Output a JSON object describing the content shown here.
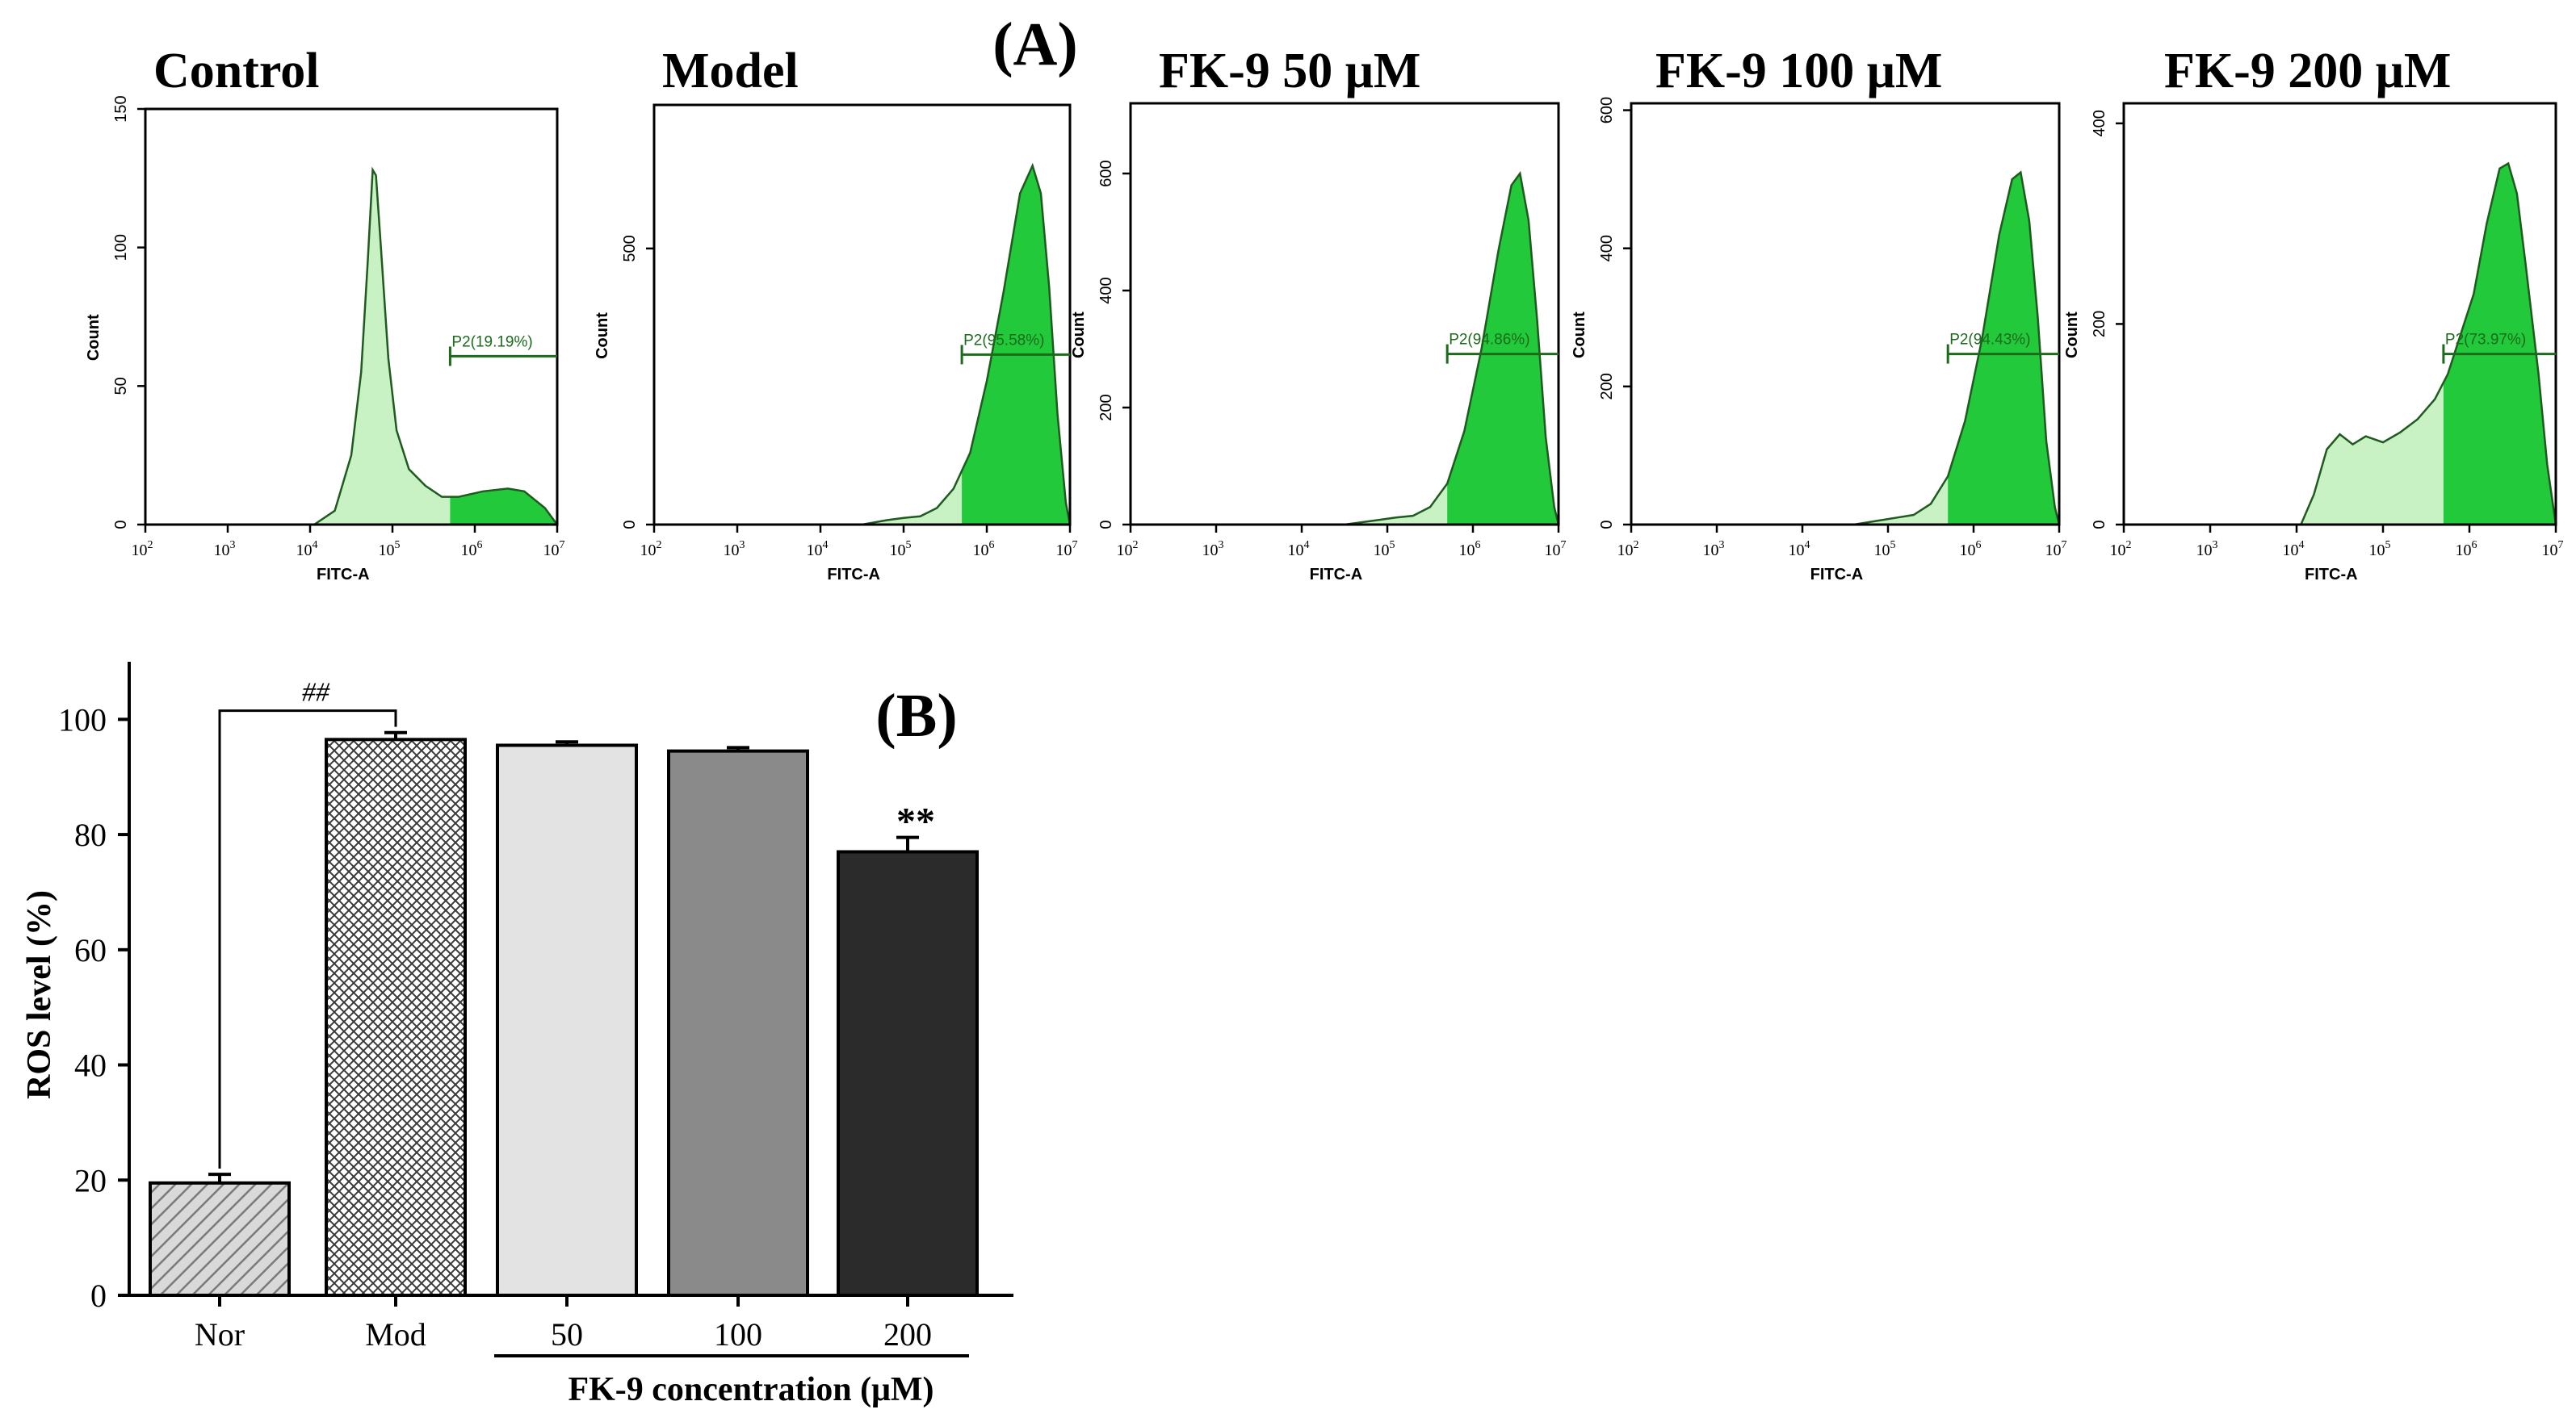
{
  "panel_a_label": "(A)",
  "panel_b_label": "(B)",
  "chart_data": [
    {
      "type": "histogram",
      "title": "Control",
      "xlabel": "FITC-A",
      "ylabel": "Count",
      "x_scale": "log10",
      "xlim": [
        100,
        10000000
      ],
      "x_ticks": [
        {
          "v": 100,
          "e": "2"
        },
        {
          "v": 1000,
          "e": "3"
        },
        {
          "v": 10000,
          "e": "4"
        },
        {
          "v": 100000,
          "e": "5"
        },
        {
          "v": 1000000,
          "e": "6"
        },
        {
          "v": 10000000,
          "e": "7"
        }
      ],
      "ylim": [
        0,
        150
      ],
      "y_ticks": [
        0,
        50,
        100,
        150
      ],
      "gate": {
        "label": "P2(19.19%)",
        "from_log": 5.7,
        "to_log": 7.0
      },
      "profile": [
        [
          4.05,
          0
        ],
        [
          4.3,
          5
        ],
        [
          4.5,
          25
        ],
        [
          4.62,
          55
        ],
        [
          4.7,
          95
        ],
        [
          4.76,
          128
        ],
        [
          4.8,
          126
        ],
        [
          4.86,
          100
        ],
        [
          4.95,
          60
        ],
        [
          5.05,
          34
        ],
        [
          5.2,
          20
        ],
        [
          5.4,
          14
        ],
        [
          5.6,
          10
        ],
        [
          5.8,
          10
        ],
        [
          6.1,
          12
        ],
        [
          6.4,
          13
        ],
        [
          6.6,
          12
        ],
        [
          6.85,
          6
        ],
        [
          7.0,
          0
        ]
      ]
    },
    {
      "type": "histogram",
      "title": "Model",
      "xlabel": "FITC-A",
      "ylabel": "Count",
      "x_scale": "log10",
      "xlim": [
        100,
        10000000
      ],
      "x_ticks": [
        {
          "v": 100,
          "e": "2"
        },
        {
          "v": 1000,
          "e": "3"
        },
        {
          "v": 10000,
          "e": "4"
        },
        {
          "v": 100000,
          "e": "5"
        },
        {
          "v": 1000000,
          "e": "6"
        },
        {
          "v": 10000000,
          "e": "7"
        }
      ],
      "ylim": [
        0,
        760
      ],
      "y_ticks": [
        0,
        500
      ],
      "gate": {
        "label": "P2(95.58%)",
        "from_log": 5.7,
        "to_log": 7.0
      },
      "profile": [
        [
          4.5,
          0
        ],
        [
          4.8,
          8
        ],
        [
          5.0,
          12
        ],
        [
          5.2,
          15
        ],
        [
          5.4,
          30
        ],
        [
          5.6,
          65
        ],
        [
          5.8,
          130
        ],
        [
          6.0,
          260
        ],
        [
          6.2,
          420
        ],
        [
          6.4,
          600
        ],
        [
          6.55,
          650
        ],
        [
          6.65,
          600
        ],
        [
          6.75,
          430
        ],
        [
          6.85,
          200
        ],
        [
          6.95,
          40
        ],
        [
          7.0,
          0
        ]
      ]
    },
    {
      "type": "histogram",
      "title": "FK-9 50 μM",
      "xlabel": "FITC-A",
      "ylabel": "Count",
      "x_scale": "log10",
      "xlim": [
        100,
        10000000
      ],
      "x_ticks": [
        {
          "v": 100,
          "e": "2"
        },
        {
          "v": 1000,
          "e": "3"
        },
        {
          "v": 10000,
          "e": "4"
        },
        {
          "v": 100000,
          "e": "5"
        },
        {
          "v": 1000000,
          "e": "6"
        },
        {
          "v": 10000000,
          "e": "7"
        }
      ],
      "ylim": [
        0,
        720
      ],
      "y_ticks": [
        0,
        200,
        400,
        600
      ],
      "gate": {
        "label": "P2(94.86%)",
        "from_log": 5.7,
        "to_log": 7.0
      },
      "profile": [
        [
          4.5,
          0
        ],
        [
          4.9,
          8
        ],
        [
          5.1,
          12
        ],
        [
          5.3,
          15
        ],
        [
          5.5,
          30
        ],
        [
          5.7,
          70
        ],
        [
          5.9,
          160
        ],
        [
          6.1,
          300
        ],
        [
          6.3,
          470
        ],
        [
          6.45,
          580
        ],
        [
          6.55,
          600
        ],
        [
          6.65,
          520
        ],
        [
          6.75,
          350
        ],
        [
          6.85,
          150
        ],
        [
          6.95,
          30
        ],
        [
          7.0,
          0
        ]
      ]
    },
    {
      "type": "histogram",
      "title": "FK-9 100 μM",
      "xlabel": "FITC-A",
      "ylabel": "Count",
      "x_scale": "log10",
      "xlim": [
        100,
        10000000
      ],
      "x_ticks": [
        {
          "v": 100,
          "e": "2"
        },
        {
          "v": 1000,
          "e": "3"
        },
        {
          "v": 10000,
          "e": "4"
        },
        {
          "v": 100000,
          "e": "5"
        },
        {
          "v": 1000000,
          "e": "6"
        },
        {
          "v": 10000000,
          "e": "7"
        }
      ],
      "ylim": [
        0,
        610
      ],
      "y_ticks": [
        0,
        200,
        400,
        600
      ],
      "gate": {
        "label": "P2(94.43%)",
        "from_log": 5.7,
        "to_log": 7.0
      },
      "profile": [
        [
          4.6,
          0
        ],
        [
          4.9,
          6
        ],
        [
          5.1,
          10
        ],
        [
          5.3,
          14
        ],
        [
          5.5,
          30
        ],
        [
          5.7,
          70
        ],
        [
          5.9,
          150
        ],
        [
          6.1,
          270
        ],
        [
          6.3,
          420
        ],
        [
          6.45,
          500
        ],
        [
          6.55,
          510
        ],
        [
          6.65,
          440
        ],
        [
          6.75,
          300
        ],
        [
          6.85,
          120
        ],
        [
          6.95,
          25
        ],
        [
          7.0,
          0
        ]
      ]
    },
    {
      "type": "histogram",
      "title": "FK-9 200 μM",
      "xlabel": "FITC-A",
      "ylabel": "Count",
      "x_scale": "log10",
      "xlim": [
        100,
        10000000
      ],
      "x_ticks": [
        {
          "v": 100,
          "e": "2"
        },
        {
          "v": 1000,
          "e": "3"
        },
        {
          "v": 10000,
          "e": "4"
        },
        {
          "v": 100000,
          "e": "5"
        },
        {
          "v": 1000000,
          "e": "6"
        },
        {
          "v": 10000000,
          "e": "7"
        }
      ],
      "ylim": [
        0,
        420
      ],
      "y_ticks": [
        0,
        200,
        400
      ],
      "gate": {
        "label": "P2(73.97%)",
        "from_log": 5.7,
        "to_log": 7.0
      },
      "profile": [
        [
          4.05,
          0
        ],
        [
          4.2,
          30
        ],
        [
          4.35,
          75
        ],
        [
          4.5,
          90
        ],
        [
          4.65,
          80
        ],
        [
          4.8,
          88
        ],
        [
          5.0,
          82
        ],
        [
          5.2,
          92
        ],
        [
          5.4,
          105
        ],
        [
          5.6,
          125
        ],
        [
          5.75,
          150
        ],
        [
          5.9,
          190
        ],
        [
          6.05,
          230
        ],
        [
          6.2,
          300
        ],
        [
          6.35,
          355
        ],
        [
          6.45,
          360
        ],
        [
          6.55,
          330
        ],
        [
          6.65,
          260
        ],
        [
          6.8,
          150
        ],
        [
          6.9,
          60
        ],
        [
          7.0,
          0
        ]
      ]
    },
    {
      "type": "bar",
      "title": "",
      "xlabel": "FK-9 concentration (μM)",
      "ylabel": "ROS level (%)",
      "categories": [
        "Nor",
        "Mod",
        "50",
        "100",
        "200"
      ],
      "values": [
        19.5,
        96.5,
        95.5,
        94.5,
        77.0
      ],
      "errors": [
        1.5,
        1.2,
        0.6,
        0.6,
        2.5
      ],
      "fills": [
        "hatch-diag",
        "hatch-cross",
        "#e3e3e3",
        "#8a8a8a",
        "#2b2b2b"
      ],
      "ylim": [
        0,
        110
      ],
      "y_ticks": [
        0,
        20,
        40,
        60,
        80,
        100
      ],
      "bracket_label": "##",
      "significance": {
        "index": 4,
        "label": "**"
      }
    }
  ]
}
